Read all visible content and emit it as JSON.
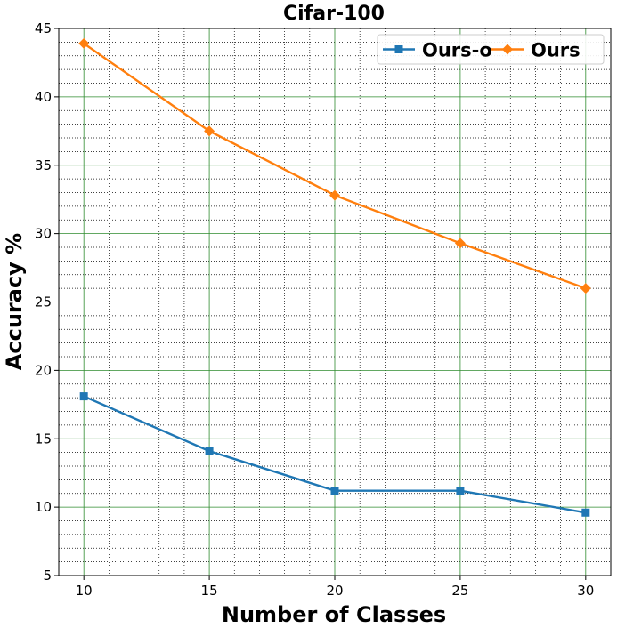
{
  "chart_data": {
    "type": "line",
    "title": "Cifar-100",
    "xlabel": "Number of Classes",
    "ylabel": "Accuracy %",
    "x": [
      10,
      15,
      20,
      25,
      30
    ],
    "xlim": [
      9,
      31
    ],
    "ylim": [
      5,
      45
    ],
    "xticks": [
      "10",
      "15",
      "20",
      "25",
      "30"
    ],
    "yticks": [
      "5",
      "10",
      "15",
      "20",
      "25",
      "30",
      "35",
      "40",
      "45"
    ],
    "grid": true,
    "legend_position": "top-right",
    "series": [
      {
        "name": "Ours-o",
        "color": "#1f77b4",
        "marker": "square",
        "values": [
          18.1,
          14.1,
          11.2,
          11.2,
          9.6
        ]
      },
      {
        "name": "Ours",
        "color": "#ff7f0e",
        "marker": "diamond",
        "values": [
          43.9,
          37.5,
          32.8,
          29.3,
          26.0
        ]
      }
    ]
  }
}
